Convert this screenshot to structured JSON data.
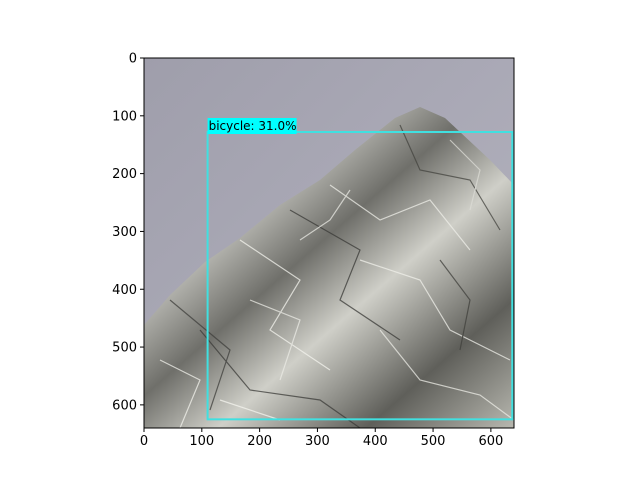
{
  "image_axes": {
    "x_range": [
      0,
      640
    ],
    "y_range": [
      0,
      640
    ],
    "x_ticks": [
      "0",
      "100",
      "200",
      "300",
      "400",
      "500",
      "600"
    ],
    "y_ticks": [
      "0",
      "100",
      "200",
      "300",
      "400",
      "500",
      "600"
    ],
    "x_tick_values": [
      0,
      100,
      200,
      300,
      400,
      500,
      600
    ],
    "y_tick_values": [
      0,
      100,
      200,
      300,
      400,
      500,
      600
    ]
  },
  "detections": [
    {
      "label": "bicycle: 31.0%",
      "box_color": "#40e0e0",
      "label_bg_color": "#00ffff",
      "box": {
        "x1": 110,
        "y1": 128,
        "x2": 637,
        "y2": 625
      }
    }
  ],
  "photo": {
    "background_color": "#a7a6b3",
    "foil_color": "#a9a9a4"
  }
}
